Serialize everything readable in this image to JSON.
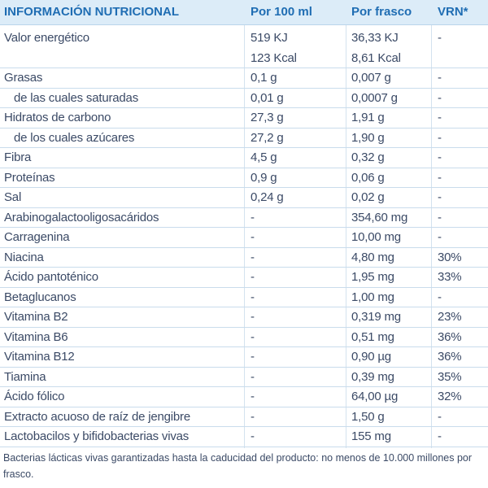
{
  "table": {
    "header": [
      "INFORMACIÓN NUTRICIONAL",
      "Por 100 ml",
      "Por frasco",
      "VRN*"
    ],
    "rows": [
      {
        "cells": [
          "Valor energético",
          [
            "519 KJ",
            "123 Kcal"
          ],
          [
            "36,33 KJ",
            "8,61 Kcal"
          ],
          "-"
        ]
      },
      {
        "cells": [
          "Grasas",
          "0,1 g",
          "0,007 g",
          "-"
        ],
        "sub": [
          {
            "cells": [
              "de las cuales saturadas",
              "0,01 g",
              "0,0007 g",
              "-"
            ]
          }
        ]
      },
      {
        "cells": [
          "Hidratos de carbono",
          "27,3 g",
          "1,91 g",
          "-"
        ],
        "sub": [
          {
            "cells": [
              "de los cuales azúcares",
              "27,2 g",
              "1,90 g",
              "-"
            ]
          }
        ]
      },
      {
        "cells": [
          "Fibra",
          "4,5 g",
          "0,32 g",
          "-"
        ]
      },
      {
        "cells": [
          "Proteínas",
          "0,9 g",
          "0,06 g",
          "-"
        ]
      },
      {
        "cells": [
          "Sal",
          "0,24 g",
          "0,02 g",
          "-"
        ]
      },
      {
        "cells": [
          "Arabinogalactooligosacáridos",
          "-",
          "354,60 mg",
          "-"
        ]
      },
      {
        "cells": [
          "Carragenina",
          "-",
          "10,00 mg",
          "-"
        ]
      },
      {
        "cells": [
          "Niacina",
          "-",
          "4,80 mg",
          "30%"
        ]
      },
      {
        "cells": [
          "Ácido pantoténico",
          "-",
          "1,95 mg",
          "33%"
        ]
      },
      {
        "cells": [
          "Betaglucanos",
          "-",
          "1,00 mg",
          "-"
        ]
      },
      {
        "cells": [
          "Vitamina B2",
          "-",
          "0,319 mg",
          "23%"
        ]
      },
      {
        "cells": [
          "Vitamina B6",
          "-",
          "0,51 mg",
          "36%"
        ]
      },
      {
        "cells": [
          "Vitamina B12",
          "-",
          "0,90 µg",
          "36%"
        ]
      },
      {
        "cells": [
          "Tiamina",
          "-",
          "0,39 mg",
          "35%"
        ]
      },
      {
        "cells": [
          "Ácido fólico",
          "-",
          "64,00 µg",
          "32%"
        ]
      },
      {
        "cells": [
          "Extracto acuoso de raíz de jengibre",
          "-",
          "1,50 g",
          "-"
        ]
      },
      {
        "cells": [
          "Lactobacilos y bifidobacterias vivas",
          "-",
          "155 mg",
          "-"
        ]
      }
    ],
    "footnote": "Bacterias lácticas vivas garantizadas hasta la caducidad del producto: no menos de 10.000 millones por frasco."
  }
}
